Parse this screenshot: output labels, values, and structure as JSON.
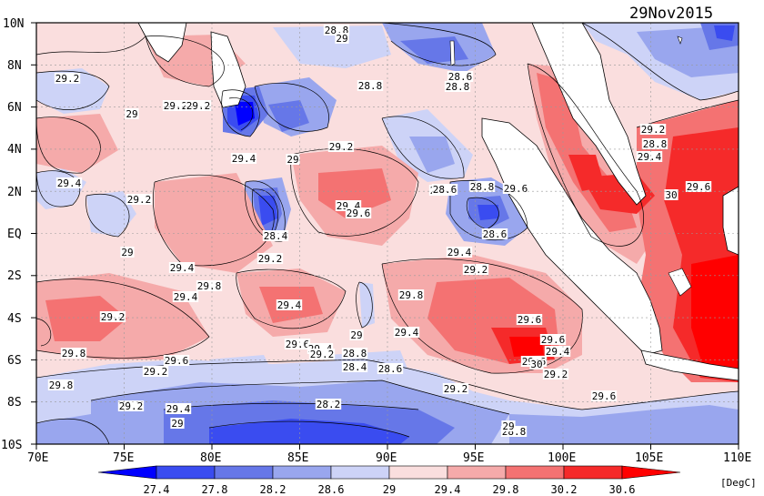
{
  "date": "29Nov2015",
  "unit": "[DegC]",
  "lat_labels": [
    "10N",
    "8N",
    "6N",
    "4N",
    "2N",
    "EQ",
    "2S",
    "4S",
    "6S",
    "8S",
    "10S"
  ],
  "lon_labels": [
    "70E",
    "75E",
    "80E",
    "85E",
    "90E",
    "95E",
    "100E",
    "105E",
    "110E"
  ],
  "colorbar": {
    "levels": [
      "27.4",
      "27.8",
      "28.2",
      "28.6",
      "29",
      "29.4",
      "29.8",
      "30.2",
      "30.6"
    ],
    "colors": [
      "#0000ff",
      "#3a4cf0",
      "#6677e8",
      "#99a6ee",
      "#cdd3f7",
      "#fadede",
      "#f5aaaa",
      "#f47272",
      "#f52a2a",
      "#ff0000"
    ]
  },
  "contour_labels": [
    "28.8",
    "29",
    "29.2",
    "29.2",
    "29.2",
    "29",
    "28.8",
    "28.6",
    "28.8",
    "29.2",
    "29.4",
    "29",
    "29.4",
    "28.8",
    "29.2",
    "29.6",
    "30",
    "29.4",
    "29.2",
    "29.6",
    "28.6",
    "28.8",
    "28.6",
    "29.4",
    "29.6",
    "29.4",
    "28.4",
    "29.2",
    "29",
    "29.4",
    "29.8",
    "29.2",
    "29.4",
    "29.2",
    "29.4",
    "29.8",
    "29.6",
    "29.6",
    "29.4",
    "29",
    "29.6",
    "29.4",
    "29.8",
    "29.6",
    "29.2",
    "29.4",
    "28.8",
    "29.2",
    "29.6",
    "28.6",
    "28.4",
    "28.6",
    "29.8",
    "29.2",
    "30",
    "29.6",
    "29.2",
    "29.2",
    "29.4",
    "28.2",
    "29",
    "28.8",
    "29"
  ]
}
